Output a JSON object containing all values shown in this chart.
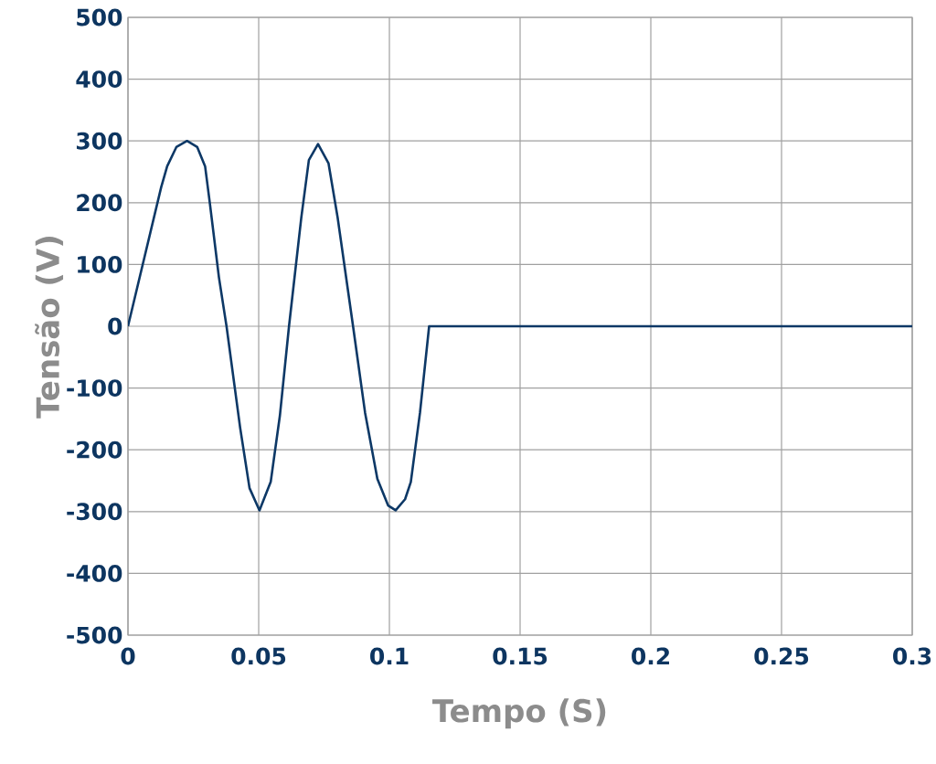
{
  "chart_data": {
    "type": "line",
    "xlabel": "Tempo (S)",
    "ylabel": "Tensão (V)",
    "xlim": [
      0,
      0.3
    ],
    "ylim": [
      -500,
      500
    ],
    "xticks": [
      0,
      0.05,
      0.1,
      0.15,
      0.2,
      0.25,
      0.3
    ],
    "yticks": [
      -500,
      -400,
      -300,
      -200,
      -100,
      0,
      100,
      200,
      300,
      400,
      500
    ],
    "grid": true,
    "marker": "none",
    "line_style": "solid",
    "series": [
      {
        "color": "#0d3866",
        "x": [
          0,
          0.0127,
          0.015,
          0.0185,
          0.0226,
          0.0265,
          0.0295,
          0.0313,
          0.0348,
          0.0377,
          0.0429,
          0.0465,
          0.0503,
          0.0546,
          0.0581,
          0.0616,
          0.0663,
          0.0692,
          0.0727,
          0.0767,
          0.0802,
          0.0861,
          0.0907,
          0.0954,
          0.0995,
          0.1024,
          0.106,
          0.1082,
          0.1117,
          0.1152,
          0.3
        ],
        "values": [
          0,
          225,
          259,
          290,
          300,
          290,
          259,
          200,
          79,
          0,
          -164,
          -262,
          -298,
          -252,
          -145,
          0,
          176,
          269,
          295,
          264,
          176,
          0,
          -140,
          -247,
          -290,
          -298,
          -280,
          -252,
          -140,
          0,
          0
        ]
      }
    ]
  }
}
